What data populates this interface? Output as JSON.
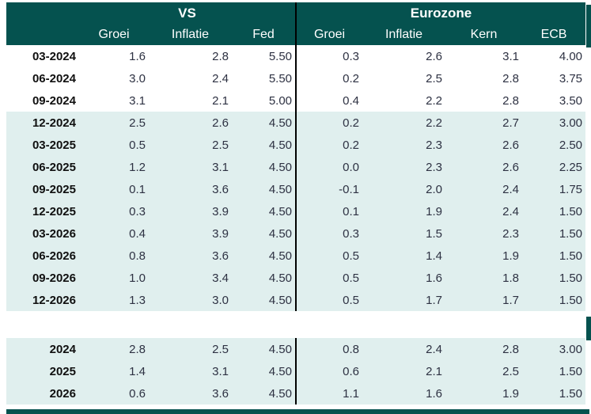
{
  "colors": {
    "header_background": "#05524f",
    "header_text": "#ffffff",
    "highlight_row_background": "#e0efee",
    "divider_line": "#000000",
    "number_text": "#2d3142",
    "row_label_text": "#101010"
  },
  "chart_data": {
    "type": "table",
    "region_groups": [
      {
        "label": "VS",
        "columns": [
          "Groei",
          "Inflatie",
          "Fed"
        ]
      },
      {
        "label": "Eurozone",
        "columns": [
          "Groei",
          "Inflatie",
          "Kern",
          "ECB"
        ]
      }
    ],
    "rows": [
      {
        "label": "03-2024",
        "values": [
          "1.6",
          "2.8",
          "5.50",
          "0.3",
          "2.6",
          "3.1",
          "4.00"
        ],
        "highlight": false
      },
      {
        "label": "06-2024",
        "values": [
          "3.0",
          "2.4",
          "5.50",
          "0.2",
          "2.5",
          "2.8",
          "3.75"
        ],
        "highlight": false
      },
      {
        "label": "09-2024",
        "values": [
          "3.1",
          "2.1",
          "5.00",
          "0.4",
          "2.2",
          "2.8",
          "3.50"
        ],
        "highlight": false
      },
      {
        "label": "12-2024",
        "values": [
          "2.5",
          "2.6",
          "4.50",
          "0.2",
          "2.2",
          "2.7",
          "3.00"
        ],
        "highlight": true
      },
      {
        "label": "03-2025",
        "values": [
          "0.5",
          "2.5",
          "4.50",
          "0.2",
          "2.3",
          "2.6",
          "2.50"
        ],
        "highlight": true
      },
      {
        "label": "06-2025",
        "values": [
          "1.2",
          "3.1",
          "4.50",
          "0.0",
          "2.3",
          "2.6",
          "2.25"
        ],
        "highlight": true
      },
      {
        "label": "09-2025",
        "values": [
          "0.1",
          "3.6",
          "4.50",
          "-0.1",
          "2.0",
          "2.4",
          "1.75"
        ],
        "highlight": true
      },
      {
        "label": "12-2025",
        "values": [
          "0.3",
          "3.9",
          "4.50",
          "0.1",
          "1.9",
          "2.4",
          "1.50"
        ],
        "highlight": true
      },
      {
        "label": "03-2026",
        "values": [
          "0.4",
          "3.9",
          "4.50",
          "0.3",
          "1.5",
          "2.3",
          "1.50"
        ],
        "highlight": true
      },
      {
        "label": "06-2026",
        "values": [
          "0.8",
          "3.6",
          "4.50",
          "0.5",
          "1.4",
          "1.9",
          "1.50"
        ],
        "highlight": true
      },
      {
        "label": "09-2026",
        "values": [
          "1.0",
          "3.4",
          "4.50",
          "0.5",
          "1.6",
          "1.8",
          "1.50"
        ],
        "highlight": true
      },
      {
        "label": "12-2026",
        "values": [
          "1.3",
          "3.0",
          "4.50",
          "0.5",
          "1.7",
          "1.7",
          "1.50"
        ],
        "highlight": true
      }
    ],
    "summary_rows": [
      {
        "label": "2024",
        "values": [
          "2.8",
          "2.5",
          "4.50",
          "0.8",
          "2.4",
          "2.8",
          "3.00"
        ],
        "highlight": true
      },
      {
        "label": "2025",
        "values": [
          "1.4",
          "3.1",
          "4.50",
          "0.6",
          "2.1",
          "2.5",
          "1.50"
        ],
        "highlight": true
      },
      {
        "label": "2026",
        "values": [
          "0.6",
          "3.6",
          "4.50",
          "1.1",
          "1.6",
          "1.9",
          "1.50"
        ],
        "highlight": true
      }
    ]
  }
}
